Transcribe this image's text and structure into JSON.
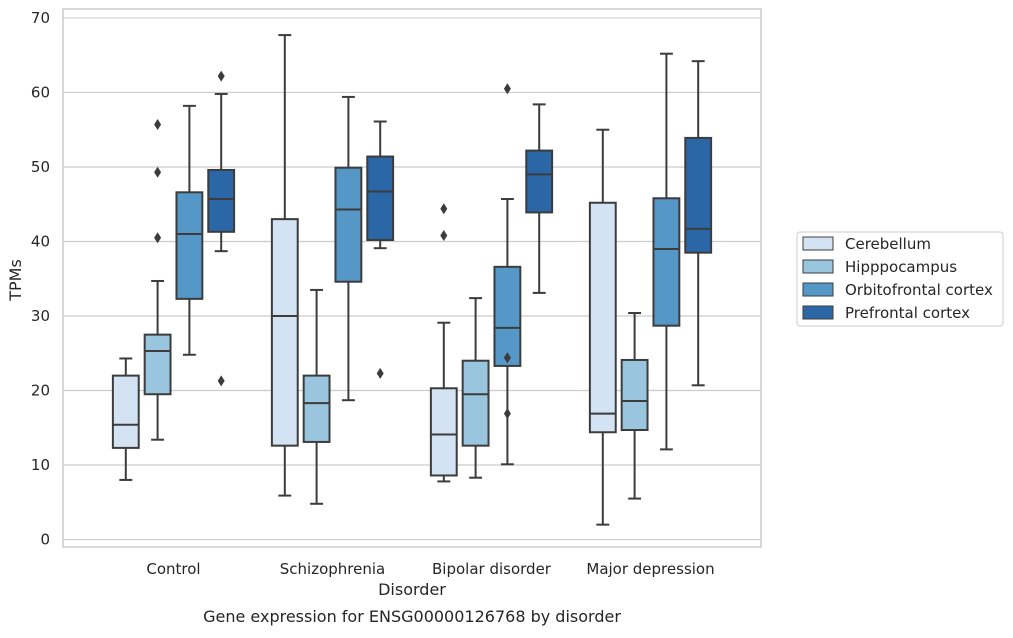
{
  "chart_data": {
    "type": "box",
    "title": "",
    "caption": "Gene expression for ENSG00000126768 by disorder",
    "xlabel": "Disorder",
    "ylabel": "TPMs",
    "ylim": [
      -1,
      71.2
    ],
    "yticks": [
      0,
      10,
      20,
      30,
      40,
      50,
      60,
      70
    ],
    "categories": [
      "Control",
      "Schizophrenia",
      "Bipolar disorder",
      "Major depression"
    ],
    "grid": "horizontal",
    "legend_position": "right",
    "series": [
      {
        "name": "Cerebellum",
        "color": "#d4e3f3",
        "boxes": [
          {
            "whislo": 8.0,
            "q1": 12.3,
            "med": 15.4,
            "q3": 22.0,
            "whishi": 24.3,
            "fliers": []
          },
          {
            "whislo": 5.9,
            "q1": 12.6,
            "med": 30.0,
            "q3": 43.0,
            "whishi": 67.7,
            "fliers": []
          },
          {
            "whislo": 7.8,
            "q1": 8.6,
            "med": 14.1,
            "q3": 20.3,
            "whishi": 29.1,
            "fliers": [
              40.8,
              44.4
            ]
          },
          {
            "whislo": 2.0,
            "q1": 14.4,
            "med": 16.9,
            "q3": 45.2,
            "whishi": 55.0,
            "fliers": []
          }
        ]
      },
      {
        "name": "Hipppocampus",
        "color": "#9ac5df",
        "boxes": [
          {
            "whislo": 13.4,
            "q1": 19.5,
            "med": 25.3,
            "q3": 27.5,
            "whishi": 34.7,
            "fliers": [
              40.5,
              49.3,
              55.7
            ]
          },
          {
            "whislo": 4.8,
            "q1": 13.1,
            "med": 18.3,
            "q3": 22.0,
            "whishi": 33.5,
            "fliers": []
          },
          {
            "whislo": 8.3,
            "q1": 12.6,
            "med": 19.5,
            "q3": 24.0,
            "whishi": 32.4,
            "fliers": []
          },
          {
            "whislo": 5.5,
            "q1": 14.7,
            "med": 18.6,
            "q3": 24.1,
            "whishi": 30.4,
            "fliers": []
          }
        ]
      },
      {
        "name": "Orbitofrontal cortex",
        "color": "#5597c6",
        "boxes": [
          {
            "whislo": 24.8,
            "q1": 32.3,
            "med": 41.0,
            "q3": 46.6,
            "whishi": 58.2,
            "fliers": []
          },
          {
            "whislo": 18.7,
            "q1": 34.6,
            "med": 44.3,
            "q3": 49.9,
            "whishi": 59.4,
            "fliers": []
          },
          {
            "whislo": 10.1,
            "q1": 23.3,
            "med": 28.4,
            "q3": 36.6,
            "whishi": 45.7,
            "fliers": [
              16.9,
              24.4,
              60.5
            ]
          },
          {
            "whislo": 12.1,
            "q1": 28.7,
            "med": 39.0,
            "q3": 45.8,
            "whishi": 65.2,
            "fliers": []
          }
        ]
      },
      {
        "name": "Prefrontal cortex",
        "color": "#2b66a6",
        "boxes": [
          {
            "whislo": 38.7,
            "q1": 41.3,
            "med": 45.7,
            "q3": 49.6,
            "whishi": 59.8,
            "fliers": [
              21.3,
              62.2
            ]
          },
          {
            "whislo": 39.1,
            "q1": 40.2,
            "med": 46.7,
            "q3": 51.4,
            "whishi": 56.1,
            "fliers": [
              22.3
            ]
          },
          {
            "whislo": 33.1,
            "q1": 43.9,
            "med": 49.0,
            "q3": 52.2,
            "whishi": 58.4,
            "fliers": []
          },
          {
            "whislo": 20.7,
            "q1": 38.5,
            "med": 41.7,
            "q3": 53.9,
            "whishi": 64.2,
            "fliers": []
          }
        ]
      }
    ]
  }
}
